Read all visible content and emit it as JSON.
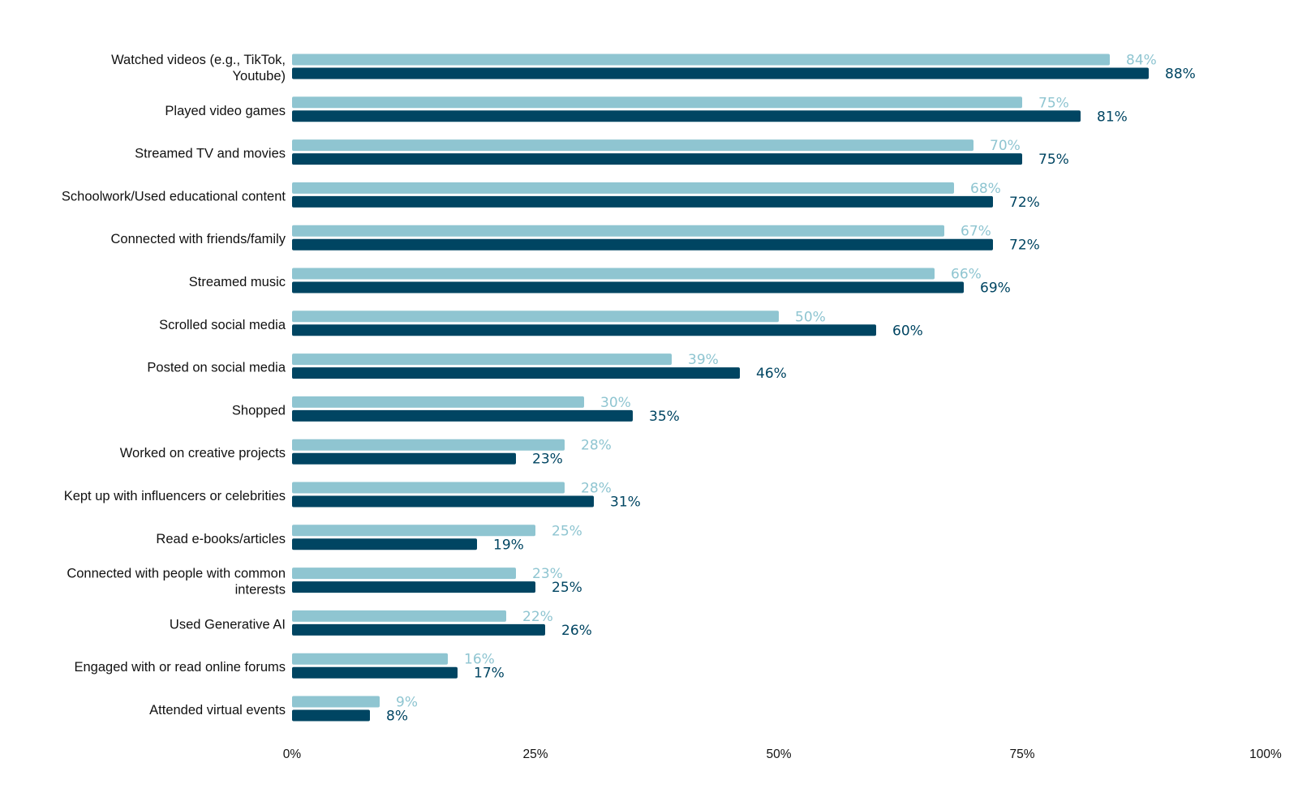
{
  "chart_data": {
    "type": "bar",
    "orientation": "horizontal",
    "title": "",
    "xlabel": "",
    "ylabel": "",
    "xlim": [
      0,
      100
    ],
    "grid": false,
    "legend": "none",
    "value_format": "percent",
    "categories": [
      [
        "Watched videos (e.g., TikTok,",
        "Youtube)"
      ],
      [
        "Played video games"
      ],
      [
        "Streamed TV and movies"
      ],
      [
        "Schoolwork/Used educational content"
      ],
      [
        "Connected with friends/family"
      ],
      [
        "Streamed music"
      ],
      [
        "Scrolled social media"
      ],
      [
        "Posted on social media"
      ],
      [
        "Shopped"
      ],
      [
        "Worked on creative projects"
      ],
      [
        "Kept up with influencers or celebrities"
      ],
      [
        "Read e-books/articles"
      ],
      [
        "Connected with people with common",
        "interests"
      ],
      [
        "Used Generative AI"
      ],
      [
        "Engaged with or read online forums"
      ],
      [
        "Attended virtual events"
      ]
    ],
    "series": [
      {
        "color": "#8fc5d1",
        "values": [
          84,
          75,
          70,
          68,
          67,
          66,
          50,
          39,
          30,
          28,
          28,
          25,
          23,
          22,
          16,
          9
        ]
      },
      {
        "color": "#004562",
        "values": [
          88,
          81,
          75,
          72,
          72,
          69,
          60,
          46,
          35,
          23,
          31,
          19,
          25,
          26,
          17,
          8
        ]
      }
    ],
    "x_ticks": [
      {
        "value": 0,
        "label": "0%"
      },
      {
        "value": 25,
        "label": "25%"
      },
      {
        "value": 50,
        "label": "50%"
      },
      {
        "value": 75,
        "label": "75%"
      },
      {
        "value": 100,
        "label": "100%"
      }
    ]
  }
}
